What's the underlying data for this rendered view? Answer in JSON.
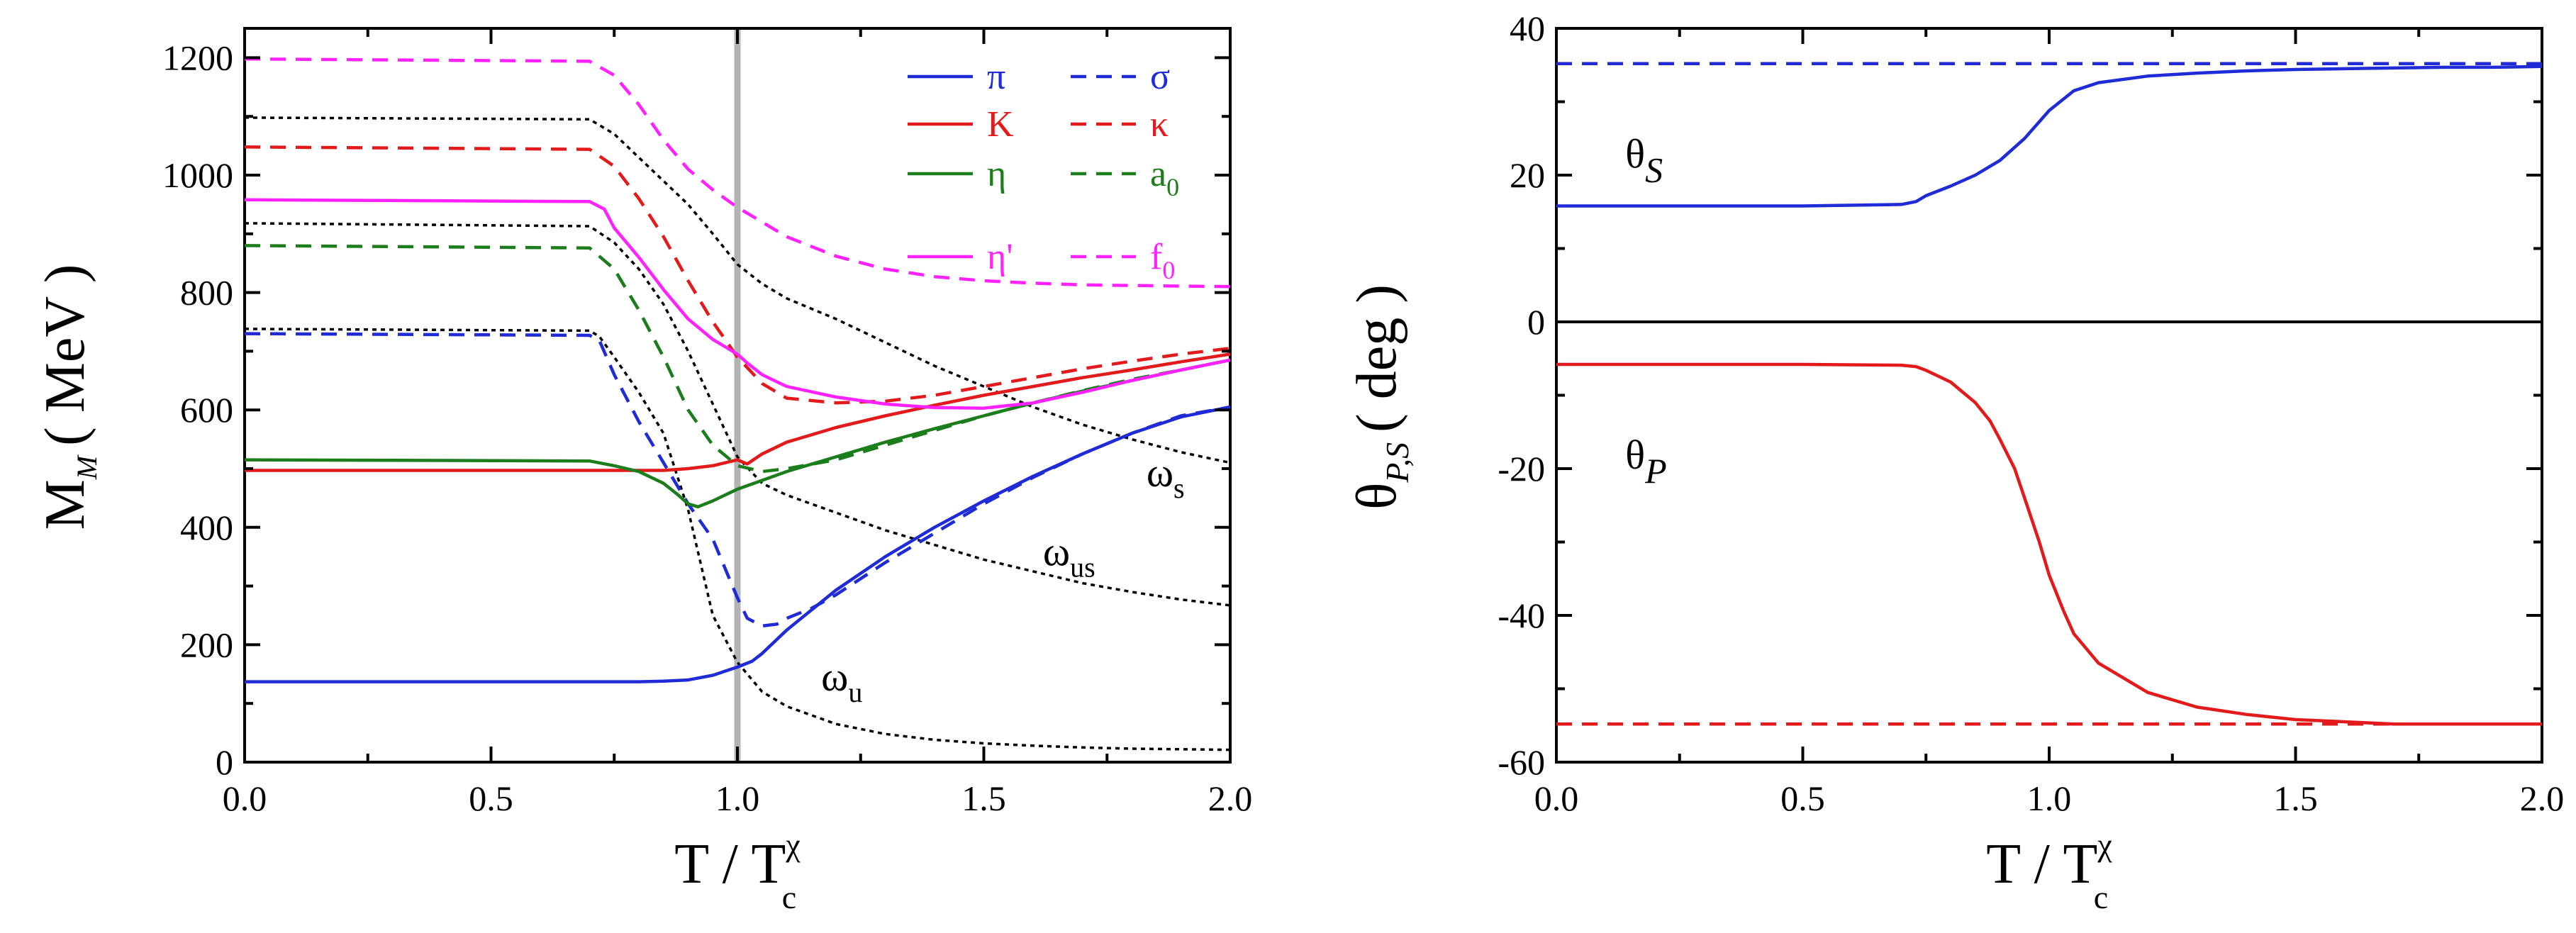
{
  "chart_data": [
    {
      "type": "line",
      "title": "",
      "xlabel": {
        "main": "T / T",
        "sup": "χ",
        "sub": "c"
      },
      "ylabel": {
        "main": "M",
        "sub": "M",
        "unit": "( MeV )"
      },
      "xlim": [
        0.0,
        2.0
      ],
      "ylim": [
        0,
        1250
      ],
      "xticks": [
        "0.0",
        "0.5",
        "1.0",
        "1.5",
        "2.0"
      ],
      "yticks": [
        "0",
        "200",
        "400",
        "600",
        "800",
        "1000",
        "1200"
      ],
      "vline": {
        "x": 1.0,
        "color": "#b3b3b3"
      },
      "legend": [
        {
          "label": "π",
          "color": "#1f2bd6",
          "dash": "solid",
          "series": "pi"
        },
        {
          "label": "σ",
          "color": "#1f2bd6",
          "dash": "dashed",
          "series": "sigma"
        },
        {
          "label": "K",
          "color": "#e31a1c",
          "dash": "solid",
          "series": "K"
        },
        {
          "label": "κ",
          "color": "#e31a1c",
          "dash": "dashed",
          "series": "kappa"
        },
        {
          "label": "η",
          "color": "#1b7d1b",
          "dash": "solid",
          "series": "eta"
        },
        {
          "label": "a",
          "sub": "0",
          "color": "#1b7d1b",
          "dash": "dashed",
          "series": "a0"
        },
        {
          "label": "η'",
          "color": "#ff22ff",
          "dash": "solid",
          "series": "etap"
        },
        {
          "label": "f",
          "sub": "0",
          "color": "#ff22ff",
          "dash": "dashed",
          "series": "f0"
        }
      ],
      "annotations": [
        {
          "label": "ω",
          "sub": "s",
          "x": 1.83,
          "y": 470
        },
        {
          "label": "ω",
          "sub": "us",
          "x": 1.62,
          "y": 335
        },
        {
          "label": "ω",
          "sub": "u",
          "x": 1.17,
          "y": 122
        }
      ],
      "series": [
        {
          "name": "omega_s",
          "color": "#000000",
          "dash": "dotted",
          "x": [
            0,
            0.7,
            0.75,
            0.8,
            0.85,
            0.9,
            0.95,
            1.0,
            1.05,
            1.1,
            1.2,
            1.3,
            1.4,
            1.5,
            1.6,
            1.7,
            1.8,
            1.9,
            2.0
          ],
          "y": [
            1098,
            1095,
            1070,
            1030,
            990,
            950,
            900,
            848,
            815,
            790,
            755,
            715,
            675,
            640,
            605,
            575,
            550,
            528,
            510
          ]
        },
        {
          "name": "omega_us",
          "color": "#000000",
          "dash": "dotted",
          "x": [
            0,
            0.7,
            0.75,
            0.8,
            0.85,
            0.9,
            0.95,
            1.0,
            1.05,
            1.1,
            1.2,
            1.3,
            1.4,
            1.5,
            1.6,
            1.7,
            1.8,
            1.9,
            2.0
          ],
          "y": [
            918,
            913,
            885,
            840,
            780,
            700,
            610,
            520,
            475,
            455,
            425,
            395,
            370,
            345,
            325,
            305,
            290,
            277,
            267
          ]
        },
        {
          "name": "omega_u",
          "color": "#000000",
          "dash": "dotted",
          "x": [
            0,
            0.7,
            0.72,
            0.75,
            0.8,
            0.85,
            0.9,
            0.95,
            1.0,
            1.05,
            1.1,
            1.2,
            1.3,
            1.4,
            1.5,
            1.6,
            1.7,
            1.8,
            1.9,
            2.0
          ],
          "y": [
            738,
            735,
            725,
            690,
            630,
            560,
            430,
            250,
            170,
            120,
            95,
            65,
            48,
            38,
            32,
            28,
            25,
            23,
            22,
            21
          ]
        },
        {
          "name": "pi",
          "color": "#1f2bd6",
          "dash": "solid",
          "x": [
            0,
            0.7,
            0.75,
            0.8,
            0.85,
            0.9,
            0.95,
            1.0,
            1.03,
            1.05,
            1.1,
            1.2,
            1.3,
            1.4,
            1.5,
            1.6,
            1.7,
            1.8,
            1.9,
            2.0
          ],
          "y": [
            137,
            137,
            137,
            137,
            138,
            140,
            148,
            162,
            172,
            185,
            225,
            293,
            350,
            400,
            445,
            487,
            525,
            560,
            588,
            605
          ]
        },
        {
          "name": "sigma",
          "color": "#1f2bd6",
          "dash": "dashed",
          "x": [
            0,
            0.7,
            0.72,
            0.75,
            0.8,
            0.85,
            0.9,
            0.95,
            1.0,
            1.02,
            1.05,
            1.08,
            1.1,
            1.15,
            1.2,
            1.3,
            1.4,
            1.5,
            1.6,
            1.7,
            1.8,
            1.9,
            2.0
          ],
          "y": [
            730,
            727,
            718,
            660,
            580,
            510,
            440,
            380,
            280,
            245,
            232,
            235,
            245,
            262,
            285,
            340,
            390,
            440,
            485,
            525,
            560,
            590,
            605
          ]
        },
        {
          "name": "K",
          "color": "#e31a1c",
          "dash": "solid",
          "x": [
            0,
            0.7,
            0.8,
            0.85,
            0.9,
            0.95,
            1.0,
            1.02,
            1.05,
            1.1,
            1.2,
            1.3,
            1.4,
            1.5,
            1.6,
            1.7,
            1.8,
            1.9,
            2.0
          ],
          "y": [
            497,
            497,
            497,
            497,
            500,
            505,
            515,
            508,
            525,
            545,
            570,
            590,
            608,
            625,
            640,
            655,
            668,
            682,
            695
          ]
        },
        {
          "name": "kappa",
          "color": "#e31a1c",
          "dash": "dashed",
          "x": [
            0,
            0.7,
            0.75,
            0.8,
            0.85,
            0.9,
            0.95,
            1.0,
            1.05,
            1.1,
            1.2,
            1.3,
            1.4,
            1.5,
            1.6,
            1.7,
            1.8,
            1.9,
            2.0
          ],
          "y": [
            1048,
            1044,
            1015,
            960,
            895,
            820,
            750,
            690,
            645,
            620,
            612,
            615,
            625,
            640,
            655,
            670,
            683,
            695,
            705
          ]
        },
        {
          "name": "eta",
          "color": "#1b7d1b",
          "dash": "solid",
          "x": [
            0,
            0.7,
            0.75,
            0.8,
            0.85,
            0.88,
            0.9,
            0.92,
            0.95,
            1.0,
            1.05,
            1.1,
            1.2,
            1.3,
            1.4,
            1.5,
            1.6,
            1.7,
            1.8,
            1.9,
            2.0
          ],
          "y": [
            515,
            513,
            505,
            495,
            475,
            455,
            440,
            435,
            445,
            465,
            480,
            495,
            520,
            545,
            568,
            590,
            612,
            632,
            650,
            668,
            685
          ]
        },
        {
          "name": "a0",
          "color": "#1b7d1b",
          "dash": "dashed",
          "x": [
            0,
            0.7,
            0.75,
            0.8,
            0.85,
            0.9,
            0.95,
            1.0,
            1.05,
            1.1,
            1.2,
            1.3,
            1.4,
            1.5,
            1.6,
            1.7,
            1.8,
            1.9,
            2.0
          ],
          "y": [
            880,
            876,
            840,
            770,
            690,
            600,
            540,
            505,
            495,
            500,
            515,
            540,
            565,
            590,
            612,
            633,
            652,
            668,
            685
          ]
        },
        {
          "name": "etap",
          "color": "#ff22ff",
          "dash": "solid",
          "x": [
            0,
            0.7,
            0.73,
            0.75,
            0.8,
            0.85,
            0.9,
            0.95,
            1.0,
            1.02,
            1.05,
            1.1,
            1.2,
            1.3,
            1.4,
            1.5,
            1.6,
            1.7,
            1.8,
            1.9,
            2.0
          ],
          "y": [
            958,
            955,
            942,
            910,
            860,
            805,
            755,
            720,
            695,
            680,
            660,
            640,
            622,
            610,
            604,
            603,
            612,
            630,
            650,
            668,
            685
          ]
        },
        {
          "name": "f0",
          "color": "#ff22ff",
          "dash": "dashed",
          "x": [
            0,
            0.7,
            0.75,
            0.8,
            0.85,
            0.9,
            0.95,
            1.0,
            1.05,
            1.1,
            1.2,
            1.3,
            1.4,
            1.5,
            1.6,
            1.7,
            1.8,
            1.9,
            2.0
          ],
          "y": [
            1198,
            1194,
            1170,
            1120,
            1060,
            1010,
            975,
            945,
            920,
            895,
            862,
            840,
            827,
            820,
            816,
            813,
            812,
            811,
            810
          ]
        }
      ]
    },
    {
      "type": "line",
      "title": "",
      "xlabel": {
        "main": "T / T",
        "sup": "χ",
        "sub": "c"
      },
      "ylabel": {
        "main": "θ",
        "sub": "P,S",
        "unit": "( deg )"
      },
      "xlim": [
        0.0,
        2.0
      ],
      "ylim": [
        -60,
        40
      ],
      "xticks": [
        "0.0",
        "0.5",
        "1.0",
        "1.5",
        "2.0"
      ],
      "yticks": [
        "-60",
        "-40",
        "-20",
        "0",
        "20",
        "40"
      ],
      "zero_line": true,
      "annotations": [
        {
          "label": "θ",
          "sub": "S",
          "color": "#1f2bd6",
          "x": 0.14,
          "y": 21
        },
        {
          "label": "θ",
          "sub": "P",
          "color": "#e31a1c",
          "x": 0.14,
          "y": -20
        }
      ],
      "series": [
        {
          "name": "theta_S",
          "color": "#1f2bd6",
          "dash": "solid",
          "x": [
            0,
            0.5,
            0.7,
            0.73,
            0.75,
            0.8,
            0.85,
            0.9,
            0.95,
            1.0,
            1.05,
            1.1,
            1.2,
            1.3,
            1.4,
            1.5,
            1.6,
            1.7,
            1.8,
            1.9,
            2.0
          ],
          "y": [
            15.8,
            15.8,
            16.0,
            16.4,
            17.2,
            18.5,
            20.0,
            22.0,
            25.0,
            28.8,
            31.5,
            32.6,
            33.5,
            33.9,
            34.2,
            34.4,
            34.5,
            34.6,
            34.7,
            34.7,
            34.8
          ]
        },
        {
          "name": "theta_S_ref",
          "color": "#1f2bd6",
          "dash": "dashed",
          "x": [
            0,
            2.0
          ],
          "y": [
            35.2,
            35.2
          ]
        },
        {
          "name": "theta_P",
          "color": "#e31a1c",
          "dash": "solid",
          "x": [
            0,
            0.5,
            0.7,
            0.73,
            0.75,
            0.8,
            0.85,
            0.88,
            0.9,
            0.93,
            0.95,
            0.98,
            1.0,
            1.03,
            1.05,
            1.1,
            1.2,
            1.3,
            1.4,
            1.5,
            1.6,
            1.7,
            1.8,
            2.0
          ],
          "y": [
            -5.8,
            -5.8,
            -5.9,
            -6.1,
            -6.6,
            -8.2,
            -11.0,
            -13.5,
            -16.0,
            -20.0,
            -24.0,
            -30.0,
            -34.5,
            -39.5,
            -42.5,
            -46.5,
            -50.5,
            -52.5,
            -53.5,
            -54.2,
            -54.5,
            -54.8,
            -54.8,
            -54.8
          ]
        },
        {
          "name": "theta_P_ref",
          "color": "#e31a1c",
          "dash": "dashed",
          "x": [
            0,
            2.0
          ],
          "y": [
            -54.8,
            -54.8
          ]
        }
      ]
    }
  ]
}
